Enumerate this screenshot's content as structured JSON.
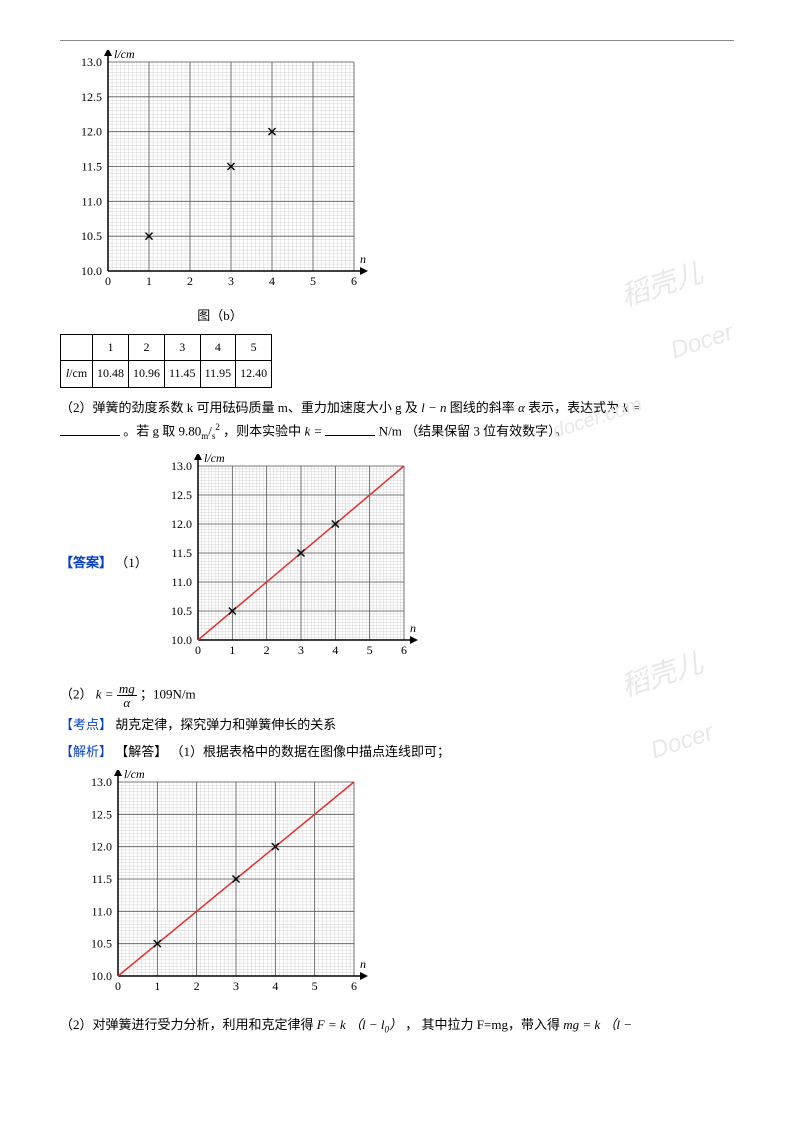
{
  "chart": {
    "type": "scatter",
    "x_label": "n",
    "y_label": "l/cm",
    "label_fontsize": 12,
    "x_range": [
      0,
      6
    ],
    "y_range": [
      10.0,
      13.0
    ],
    "x_major_ticks": [
      0,
      1,
      2,
      3,
      4,
      5,
      6
    ],
    "y_major_ticks": [
      10.0,
      10.5,
      11.0,
      11.5,
      12.0,
      12.5,
      13.0
    ],
    "y_tick_labels": [
      "10.0",
      "10.5",
      "11.0",
      "11.5",
      "12.0",
      "12.5",
      "13.0"
    ],
    "minor_per_major": 10,
    "major_grid_color": "#555555",
    "minor_grid_color": "#bbbbbb",
    "axis_color": "#000000",
    "background_color": "#ffffff",
    "marker_style": "x",
    "marker_color": "#000000",
    "marker_size": 7,
    "points": [
      {
        "x": 1,
        "y": 10.5
      },
      {
        "x": 3,
        "y": 11.5
      },
      {
        "x": 4,
        "y": 12.0
      }
    ],
    "fit_line": {
      "color": "#e03030",
      "width": 1.5,
      "x1": 0,
      "y1": 10.0,
      "x2": 6,
      "y2": 13.0
    },
    "caption": "图（b）"
  },
  "table": {
    "header": [
      "",
      "1",
      "2",
      "3",
      "4",
      "5"
    ],
    "row_label": "l/cm",
    "row_label_sub": "cm",
    "row_values": [
      "10.48",
      "10.96",
      "11.45",
      "11.95",
      "12.40"
    ]
  },
  "q2": {
    "prefix": "（2）弹簧的劲度系数 k 可用砝码质量 m、重力加速度大小 g 及 ",
    "var1": "l − n",
    "mid1": " 图线的斜率 ",
    "var2": "α",
    "mid2": " 表示，表达式为 ",
    "var3": "k =",
    "line2a": "。若 g 取 ",
    "g_val": "9.80",
    "g_unit_m": "m",
    "g_unit_s": "s",
    "g_exp": "2",
    "mid3": " ，则本实验中 ",
    "var4": "k =",
    "unit": "N/m",
    "tail": "（结果保留 3 位有效数字）。"
  },
  "answers": {
    "label": "【答案】",
    "one": "（1）",
    "two_prefix": "（2）",
    "k_expr_lead": "k =",
    "k_frac_num": "mg",
    "k_frac_den": "α",
    "k_value": "；109N/m"
  },
  "kaodian": {
    "label": "【考点】",
    "text": "胡克定律，探究弹力和弹簧伸长的关系"
  },
  "jiexi": {
    "label": "【解析】",
    "inner_label": "【解答】",
    "one": "（1）根据表格中的数据在图像中描点连线即可；",
    "two_a": "（2）对弹簧进行受力分析，利用和克定律得",
    "eq1_lhs": "F = k",
    "eq1_paren": "（l − l",
    "eq1_sub0": "0",
    "eq1_close": "）",
    "two_b": "  ，  其中拉力 F=mg，带入得",
    "eq2_lhs": "mg = k",
    "eq2_paren": "（l −"
  },
  "watermarks": {
    "a": "稻壳儿",
    "b": "Docer",
    "c": "docer.com"
  },
  "colors": {
    "text": "#000000",
    "label_blue": "#0a41c4",
    "bg": "#ffffff"
  }
}
